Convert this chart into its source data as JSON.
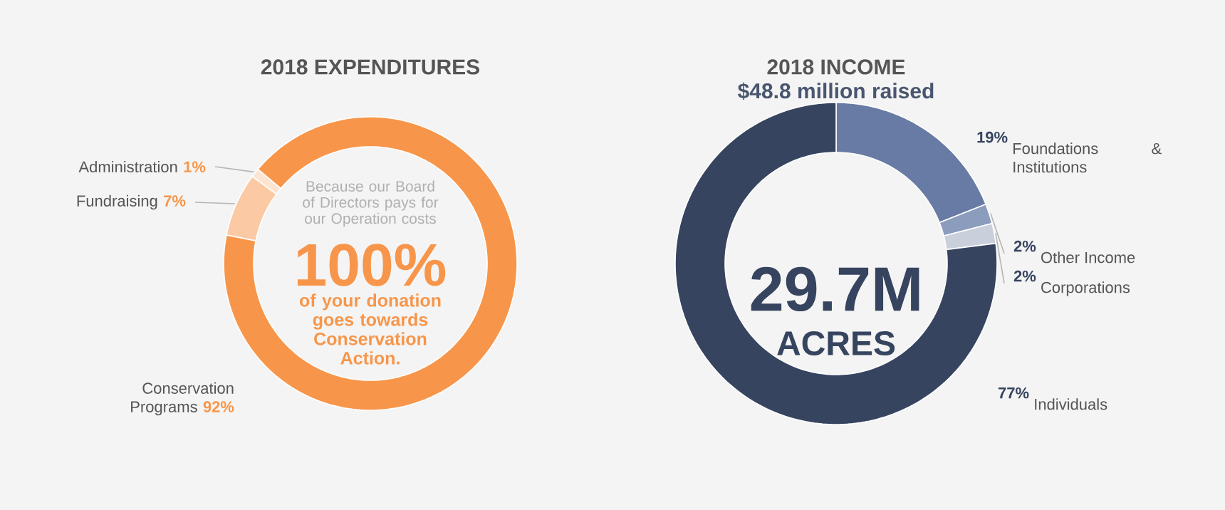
{
  "chart_data": [
    {
      "type": "donut",
      "title": "2018 EXPENDITURES",
      "categories": [
        "Administration",
        "Fundraising",
        "Conservation Programs"
      ],
      "values": [
        1,
        7,
        92
      ],
      "colors": [
        "#fde4d0",
        "#fbc9a3",
        "#f7964a"
      ],
      "value_labels": [
        "1%",
        "7%",
        "92%"
      ],
      "annotations": [
        "Because our Board of Directors pays for our Operation costs",
        "100%",
        "of your donation goes towards Conservation Action."
      ]
    },
    {
      "type": "donut",
      "title": "2018 INCOME",
      "subtitle": "$48.8 million raised",
      "categories": [
        "Foundations & Institutions",
        "Other Income",
        "Corporations",
        "Individuals"
      ],
      "values": [
        19,
        2,
        2,
        77
      ],
      "colors": [
        "#677ba4",
        "#8c9cbd",
        "#c9cfdb",
        "#36445f"
      ],
      "value_labels": [
        "19%",
        "2%",
        "2%",
        "77%"
      ],
      "annotations": [
        "29.7M",
        "ACRES"
      ]
    }
  ]
}
